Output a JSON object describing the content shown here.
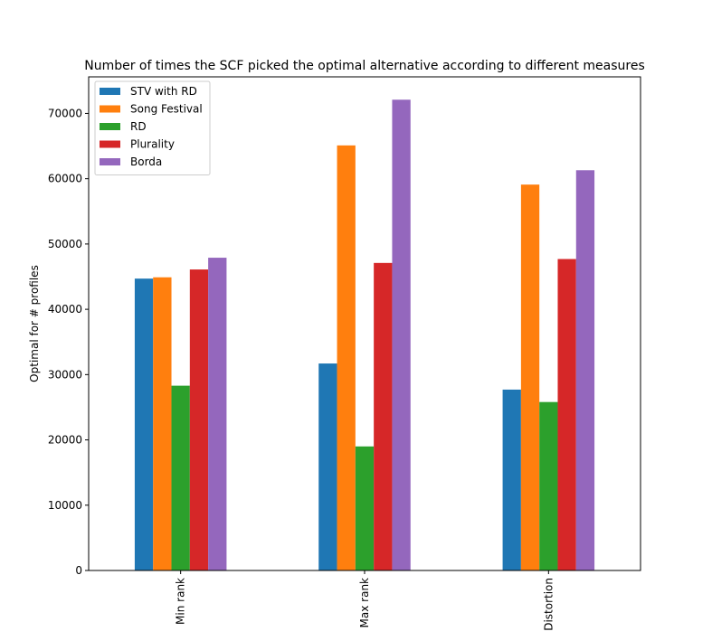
{
  "chart_data": {
    "type": "bar",
    "title": "Number of times the SCF picked the optimal alternative according to different measures",
    "xlabel": "",
    "ylabel": "Optimal for # profiles",
    "categories": [
      "Min rank",
      "Max rank",
      "Distortion"
    ],
    "ylim": [
      0,
      75600
    ],
    "yticks": [
      0,
      10000,
      20000,
      30000,
      40000,
      50000,
      60000,
      70000
    ],
    "ytick_labels": [
      "0",
      "10000",
      "20000",
      "30000",
      "40000",
      "50000",
      "60000",
      "70000"
    ],
    "grid": false,
    "legend_position": "top-left",
    "series": [
      {
        "name": "STV with RD",
        "color": "#1f77b4",
        "values": [
          44700,
          31700,
          27700
        ]
      },
      {
        "name": "Song Festival",
        "color": "#ff7f0e",
        "values": [
          44900,
          65100,
          59100
        ]
      },
      {
        "name": "RD",
        "color": "#2ca02c",
        "values": [
          28300,
          19000,
          25800
        ]
      },
      {
        "name": "Plurality",
        "color": "#d62728",
        "values": [
          46100,
          47100,
          47700
        ]
      },
      {
        "name": "Borda",
        "color": "#9467bd",
        "values": [
          47900,
          72100,
          61300
        ]
      }
    ]
  }
}
